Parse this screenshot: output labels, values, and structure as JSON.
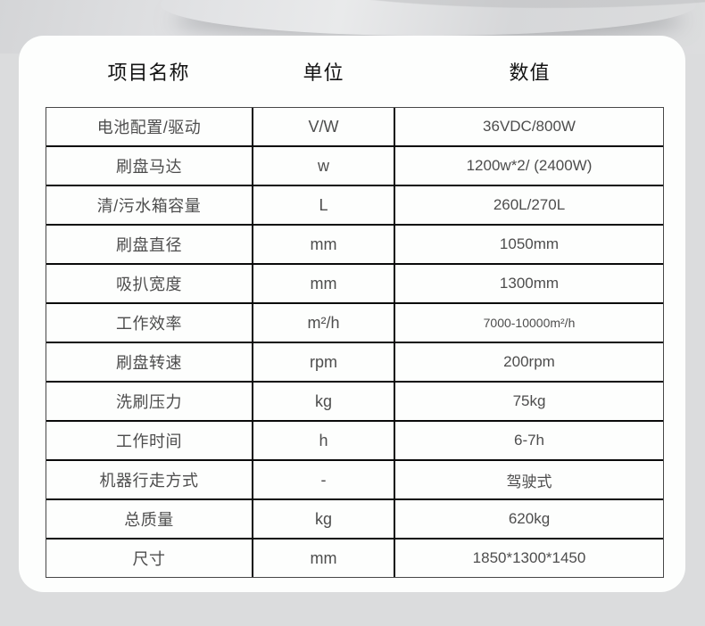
{
  "colors": {
    "page_background": "#dbdcdd",
    "card_background": "#fdfefd",
    "grid_line": "#0a0a0a",
    "outer_border": "#474747",
    "header_text": "#131313",
    "cell_text": "#4d4d4d"
  },
  "table": {
    "headers": {
      "item": "项目名称",
      "unit": "单位",
      "value": "数值"
    },
    "rows": [
      {
        "name": "电池配置/驱动",
        "unit": "V/W",
        "value": "36VDC/800W"
      },
      {
        "name": "刷盘马达",
        "unit": "w",
        "value": "1200w*2/ (2400W)"
      },
      {
        "name": "清/污水箱容量",
        "unit": "L",
        "value": "260L/270L"
      },
      {
        "name": "刷盘直径",
        "unit": "mm",
        "value": "1050mm"
      },
      {
        "name": "吸扒宽度",
        "unit": "mm",
        "value": "1300mm"
      },
      {
        "name": "工作效率",
        "unit": "m²/h",
        "value": "7000-10000m²/h",
        "small": true
      },
      {
        "name": "刷盘转速",
        "unit": "rpm",
        "value": "200rpm"
      },
      {
        "name": "洗刷压力",
        "unit": "kg",
        "value": "75kg"
      },
      {
        "name": "工作时间",
        "unit": "h",
        "value": "6-7h"
      },
      {
        "name": "机器行走方式",
        "unit": "-",
        "value": "驾驶式"
      },
      {
        "name": "总质量",
        "unit": "kg",
        "value": "620kg"
      },
      {
        "name": "尺寸",
        "unit": "mm",
        "value": "1850*1300*1450"
      }
    ]
  },
  "chart_data": {
    "type": "table",
    "title": "",
    "columns": [
      "项目名称",
      "单位",
      "数值"
    ],
    "rows": [
      [
        "电池配置/驱动",
        "V/W",
        "36VDC/800W"
      ],
      [
        "刷盘马达",
        "w",
        "1200w*2/ (2400W)"
      ],
      [
        "清/污水箱容量",
        "L",
        "260L/270L"
      ],
      [
        "刷盘直径",
        "mm",
        "1050mm"
      ],
      [
        "吸扒宽度",
        "mm",
        "1300mm"
      ],
      [
        "工作效率",
        "m²/h",
        "7000-10000m²/h"
      ],
      [
        "刷盘转速",
        "rpm",
        "200rpm"
      ],
      [
        "洗刷压力",
        "kg",
        "75kg"
      ],
      [
        "工作时间",
        "h",
        "6-7h"
      ],
      [
        "机器行走方式",
        "-",
        "驾驶式"
      ],
      [
        "总质量",
        "kg",
        "620kg"
      ],
      [
        "尺寸",
        "mm",
        "1850*1300*1450"
      ]
    ]
  }
}
